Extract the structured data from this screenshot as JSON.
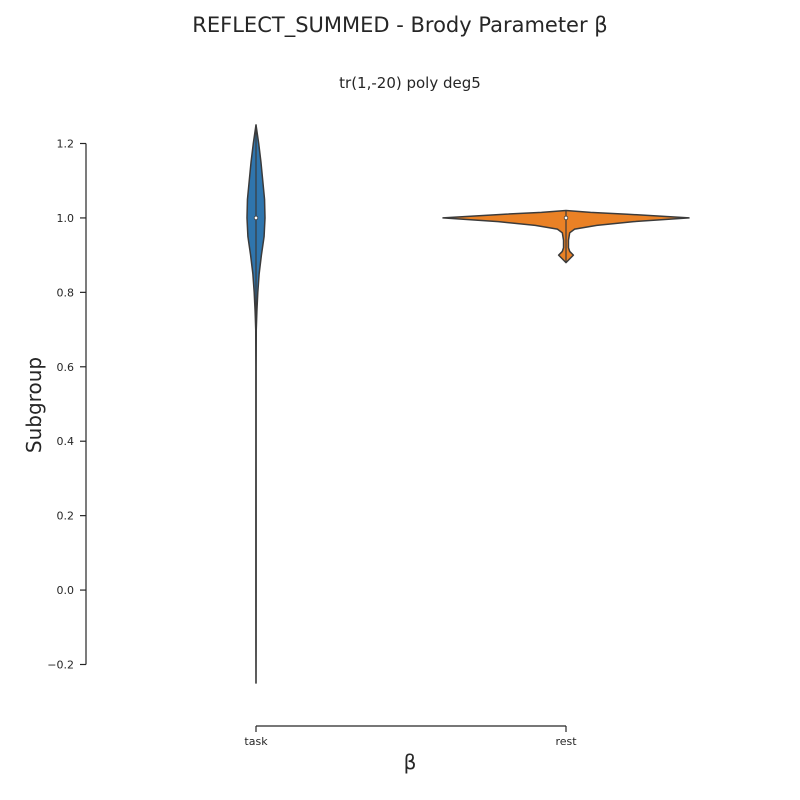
{
  "figure": {
    "title": "REFLECT_SUMMED - Brody Parameter β",
    "subtitle": "tr(1,-20) poly deg5"
  },
  "chart_data": {
    "type": "violin",
    "title": "tr(1,-20) poly deg5",
    "xlabel": "β",
    "ylabel": "Subgroup",
    "ylim": [
      -0.2,
      1.2
    ],
    "yticks": [
      -0.2,
      0.0,
      0.2,
      0.4,
      0.6,
      0.8,
      1.0,
      1.2
    ],
    "ytick_labels": [
      "−0.2",
      "0.0",
      "0.2",
      "0.4",
      "0.6",
      "0.8",
      "1.0",
      "1.2"
    ],
    "categories": [
      "task",
      "rest"
    ],
    "colors": [
      "#2f75ad",
      "#ea8125"
    ],
    "violins": [
      {
        "category": "task",
        "median": 1.0,
        "range": [
          -0.25,
          1.25
        ],
        "density": [
          [
            -0.25,
            0.0
          ],
          [
            -0.15,
            0.01
          ],
          [
            0.0,
            0.015
          ],
          [
            0.2,
            0.015
          ],
          [
            0.4,
            0.01
          ],
          [
            0.6,
            0.015
          ],
          [
            0.7,
            0.03
          ],
          [
            0.75,
            0.1
          ],
          [
            0.8,
            0.2
          ],
          [
            0.85,
            0.35
          ],
          [
            0.9,
            0.6
          ],
          [
            0.95,
            0.9
          ],
          [
            1.0,
            1.0
          ],
          [
            1.05,
            0.95
          ],
          [
            1.1,
            0.75
          ],
          [
            1.15,
            0.55
          ],
          [
            1.2,
            0.3
          ],
          [
            1.25,
            0.0
          ]
        ]
      },
      {
        "category": "rest",
        "median": 1.0,
        "range": [
          0.88,
          1.02
        ],
        "density": [
          [
            0.88,
            0.0
          ],
          [
            0.89,
            0.03
          ],
          [
            0.9,
            0.06
          ],
          [
            0.91,
            0.03
          ],
          [
            0.92,
            0.02
          ],
          [
            0.94,
            0.02
          ],
          [
            0.96,
            0.03
          ],
          [
            0.97,
            0.07
          ],
          [
            0.98,
            0.25
          ],
          [
            0.99,
            0.55
          ],
          [
            1.0,
            1.0
          ],
          [
            1.01,
            0.5
          ],
          [
            1.015,
            0.2
          ],
          [
            1.02,
            0.0
          ]
        ]
      }
    ]
  }
}
